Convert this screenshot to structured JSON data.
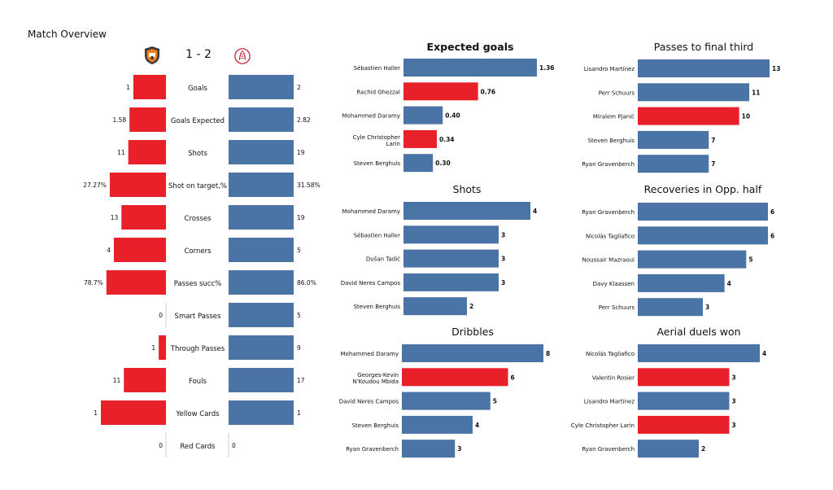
{
  "header": {
    "title": "Match Overview",
    "score": "1 - 2",
    "home_logo": "shakhtar-crest-icon",
    "away_logo": "ajax-crest-icon"
  },
  "colors": {
    "home": "#E8202A",
    "away": "#4A74A6"
  },
  "chart_data": [
    {
      "type": "bar",
      "orientation": "diverging-horizontal",
      "title": "",
      "categories": [
        "Goals",
        "Goals Expected",
        "Shots",
        "Shot on target,%",
        "Crosses",
        "Corners",
        "Passes succ%",
        "Smart Passes",
        "Through Passes",
        "Fouls",
        "Yellow Cards",
        "Red Cards"
      ],
      "series": [
        {
          "values": [
            1,
            1.58,
            11,
            27.27,
            13,
            4,
            78.7,
            0,
            1,
            11,
            1,
            0
          ],
          "labels": [
            "1",
            "1.58",
            "11",
            "27.27%",
            "13",
            "4",
            "78.7%",
            "0",
            "1",
            "11",
            "1",
            "0"
          ]
        },
        {
          "values": [
            2,
            2.82,
            19,
            31.58,
            19,
            5,
            86.0,
            5,
            9,
            17,
            1,
            0
          ],
          "labels": [
            "2",
            "2.82",
            "19",
            "31.58%",
            "19",
            "5",
            "86.0%",
            "5",
            "9",
            "17",
            "1",
            "0"
          ]
        }
      ]
    },
    {
      "type": "bar",
      "orientation": "horizontal",
      "title": "Expected goals",
      "categories": [
        "Sébastien Haller",
        "Rachid Ghezzal",
        "Mohammed Daramy",
        "Cyle Christopher Larin",
        "Steven Berghuis"
      ],
      "values": [
        1.36,
        0.76,
        0.4,
        0.34,
        0.3
      ],
      "labels": [
        "1.36",
        "0.76",
        "0.40",
        "0.34",
        "0.30"
      ],
      "team": [
        "away",
        "home",
        "away",
        "home",
        "away"
      ]
    },
    {
      "type": "bar",
      "orientation": "horizontal",
      "title": "Shots",
      "categories": [
        "Mohammed Daramy",
        "Sébastien Haller",
        "Dušan Tadić",
        "David Neres Campos",
        "Steven Berghuis"
      ],
      "values": [
        4,
        3,
        3,
        3,
        2
      ],
      "labels": [
        "4",
        "3",
        "3",
        "3",
        "2"
      ],
      "team": [
        "away",
        "away",
        "away",
        "away",
        "away"
      ]
    },
    {
      "type": "bar",
      "orientation": "horizontal",
      "title": "Dribbles",
      "categories": [
        "Mohammed Daramy",
        "Georges-Kevin N'Koudou Mbida",
        "David Neres Campos",
        "Steven Berghuis",
        "Ryan Gravenberch"
      ],
      "values": [
        8,
        6,
        5,
        4,
        3
      ],
      "labels": [
        "8",
        "6",
        "5",
        "4",
        "3"
      ],
      "team": [
        "away",
        "home",
        "away",
        "away",
        "away"
      ]
    },
    {
      "type": "bar",
      "orientation": "horizontal",
      "title": "Passes to final third",
      "categories": [
        "Lisandro Martínez",
        "Perr Schuurs",
        "Miralem Pjanić",
        "Steven Berghuis",
        "Ryan Gravenberch"
      ],
      "values": [
        13,
        11,
        10,
        7,
        7
      ],
      "labels": [
        "13",
        "11",
        "10",
        "7",
        "7"
      ],
      "team": [
        "away",
        "away",
        "home",
        "away",
        "away"
      ]
    },
    {
      "type": "bar",
      "orientation": "horizontal",
      "title": "Recoveries in Opp. half",
      "categories": [
        "Ryan Gravenberch",
        "Nicolás Tagliafico",
        "Noussair Mazraoui",
        "Davy Klaassen",
        "Perr Schuurs"
      ],
      "values": [
        6,
        6,
        5,
        4,
        3
      ],
      "labels": [
        "6",
        "6",
        "5",
        "4",
        "3"
      ],
      "team": [
        "away",
        "away",
        "away",
        "away",
        "away"
      ]
    },
    {
      "type": "bar",
      "orientation": "horizontal",
      "title": "Aerial duels won",
      "categories": [
        "Nicolás Tagliafico",
        "Valentin Rosier",
        "Lisandro Martínez",
        "Cyle Christopher Larin",
        "Ryan Gravenberch"
      ],
      "values": [
        4,
        3,
        3,
        3,
        2
      ],
      "labels": [
        "4",
        "3",
        "3",
        "3",
        "2"
      ],
      "team": [
        "away",
        "home",
        "away",
        "home",
        "away"
      ]
    }
  ]
}
